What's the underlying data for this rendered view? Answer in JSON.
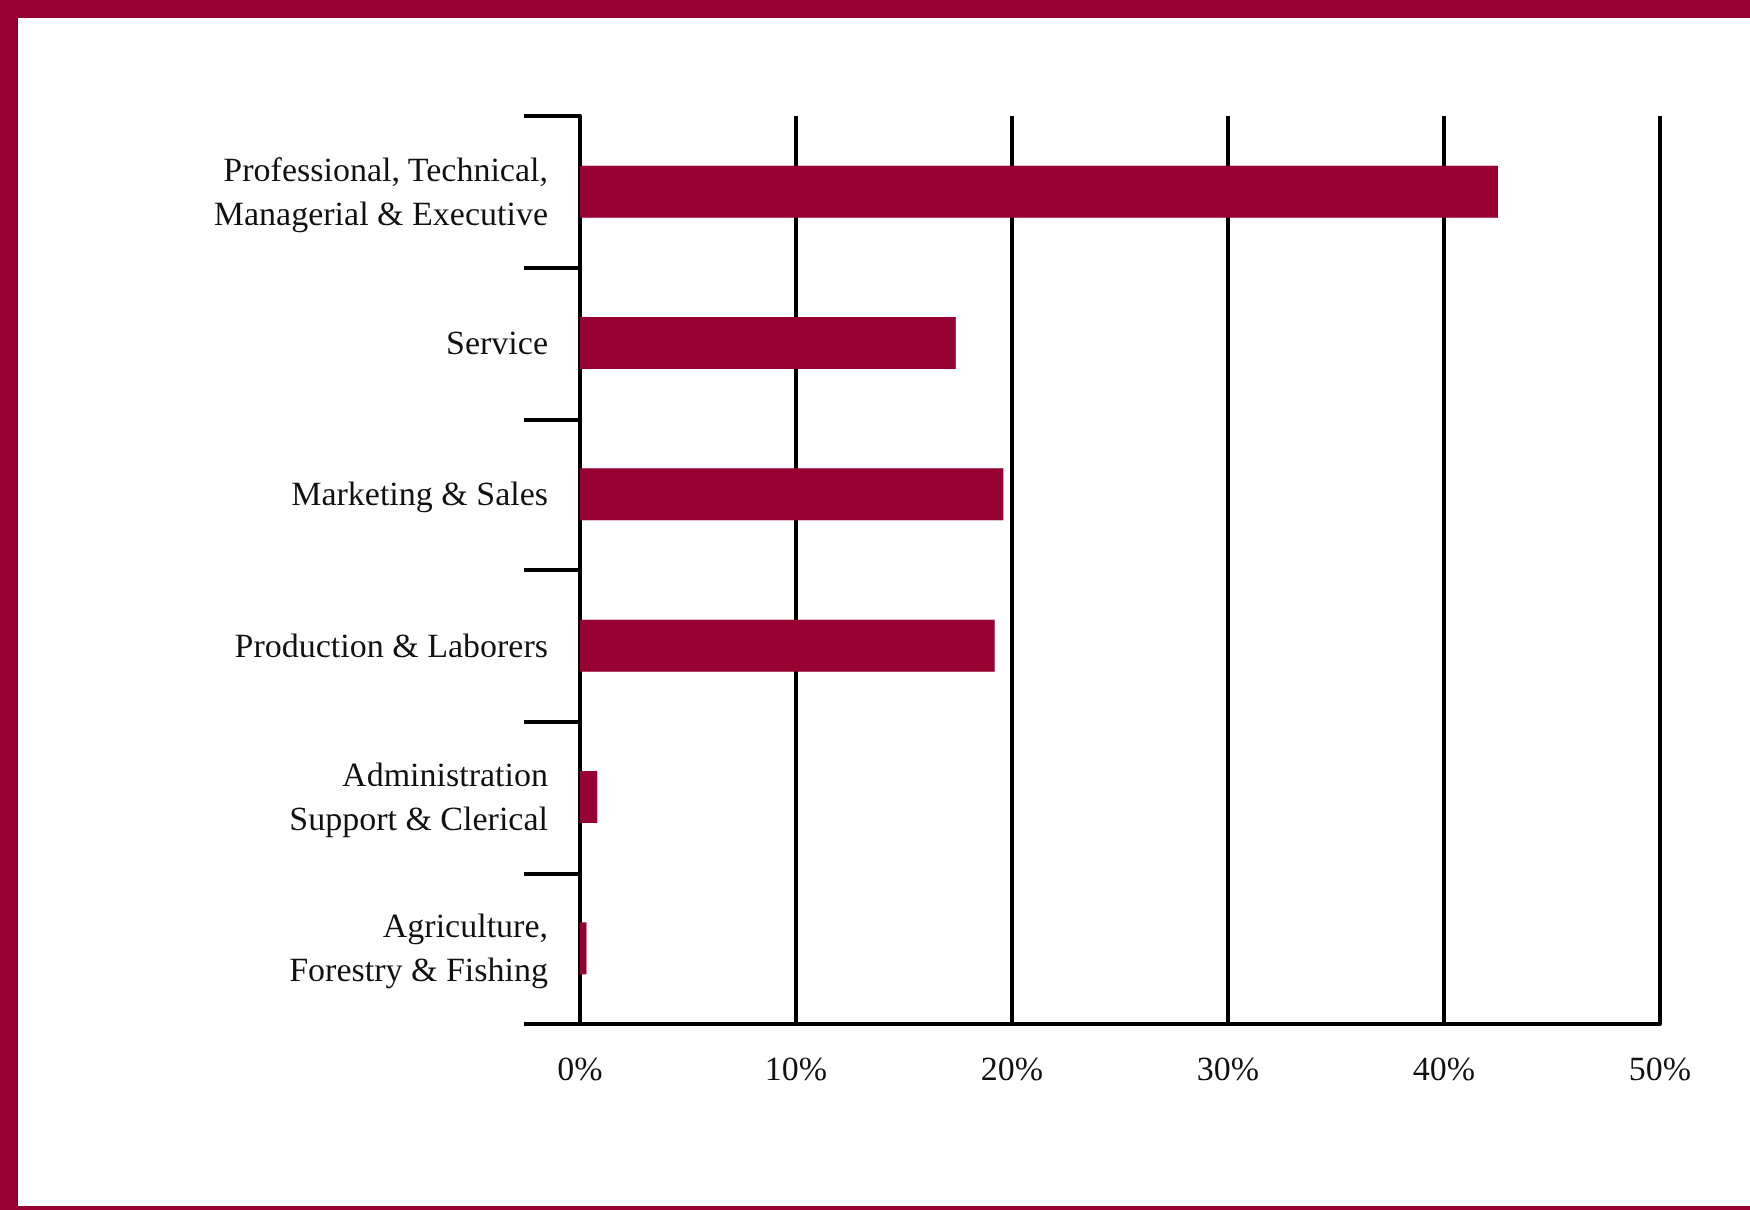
{
  "chart_data": {
    "type": "bar",
    "orientation": "horizontal",
    "categories": [
      "Professional, Technical,\nManagerial & Executive",
      "Service",
      "Marketing & Sales",
      "Production & Laborers",
      "Administration\nSupport & Clerical",
      "Agriculture,\nForestry & Fishing"
    ],
    "values": [
      42.5,
      17.4,
      19.6,
      19.2,
      0.8,
      0.3
    ],
    "color": "#960032",
    "xlim": [
      0,
      50
    ],
    "xticks": [
      {
        "value": 0,
        "label": "0%"
      },
      {
        "value": 10,
        "label": "10%"
      },
      {
        "value": 20,
        "label": "20%"
      },
      {
        "value": 30,
        "label": "30%"
      },
      {
        "value": 40,
        "label": "40%"
      },
      {
        "value": 50,
        "label": "50%"
      }
    ],
    "grid": "x"
  }
}
